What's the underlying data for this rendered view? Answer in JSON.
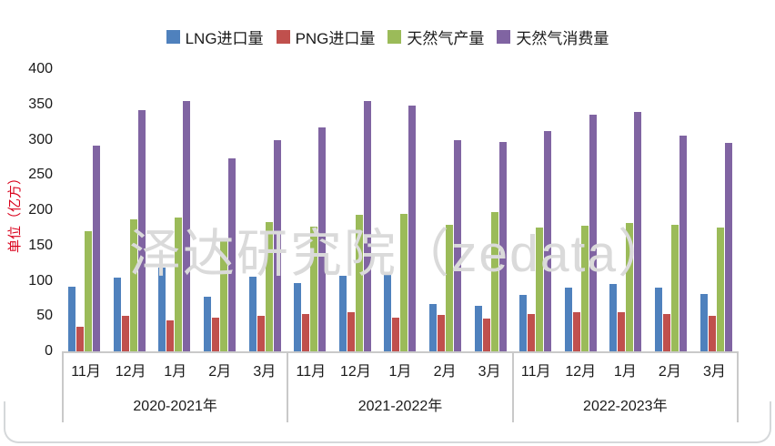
{
  "watermark": {
    "text": "泽达研究院（zedata）"
  },
  "chart_data": {
    "type": "bar",
    "title": "",
    "xlabel": "",
    "ylabel": "单位（亿方）",
    "ylim": [
      0,
      400
    ],
    "ytick_step": 50,
    "yticks": [
      400,
      350,
      300,
      250,
      200,
      150,
      100,
      50,
      0
    ],
    "grid": false,
    "legend_position": "top",
    "group_labels": [
      "2020-2021年",
      "2021-2022年",
      "2022-2023年"
    ],
    "month_labels": [
      "11月",
      "12月",
      "1月",
      "2月",
      "3月"
    ],
    "series": [
      {
        "name": "LNG进口量",
        "color": "#4F81BD",
        "values_by_group": [
          [
            92,
            105,
            119,
            77,
            106
          ],
          [
            97,
            107,
            110,
            67,
            65
          ],
          [
            80,
            90,
            95,
            90,
            81
          ]
        ]
      },
      {
        "name": "PNG进口量",
        "color": "#C0504D",
        "values_by_group": [
          [
            35,
            50,
            44,
            48,
            50
          ],
          [
            53,
            55,
            48,
            52,
            47
          ],
          [
            53,
            56,
            55,
            53,
            50
          ]
        ]
      },
      {
        "name": "天然气产量",
        "color": "#9BBB59",
        "values_by_group": [
          [
            170,
            187,
            190,
            160,
            183
          ],
          [
            177,
            193,
            195,
            180,
            197
          ],
          [
            175,
            178,
            182,
            180,
            175
          ]
        ]
      },
      {
        "name": "天然气消费量",
        "color": "#8064A2",
        "values_by_group": [
          [
            292,
            342,
            355,
            273,
            300
          ],
          [
            318,
            355,
            348,
            300,
            297
          ],
          [
            312,
            335,
            340,
            306,
            295
          ]
        ]
      }
    ],
    "axis_colors": {
      "tick_label": "#1a1a1a",
      "axis_line": "#c9c9c9",
      "y_title": "#d9001b"
    }
  }
}
